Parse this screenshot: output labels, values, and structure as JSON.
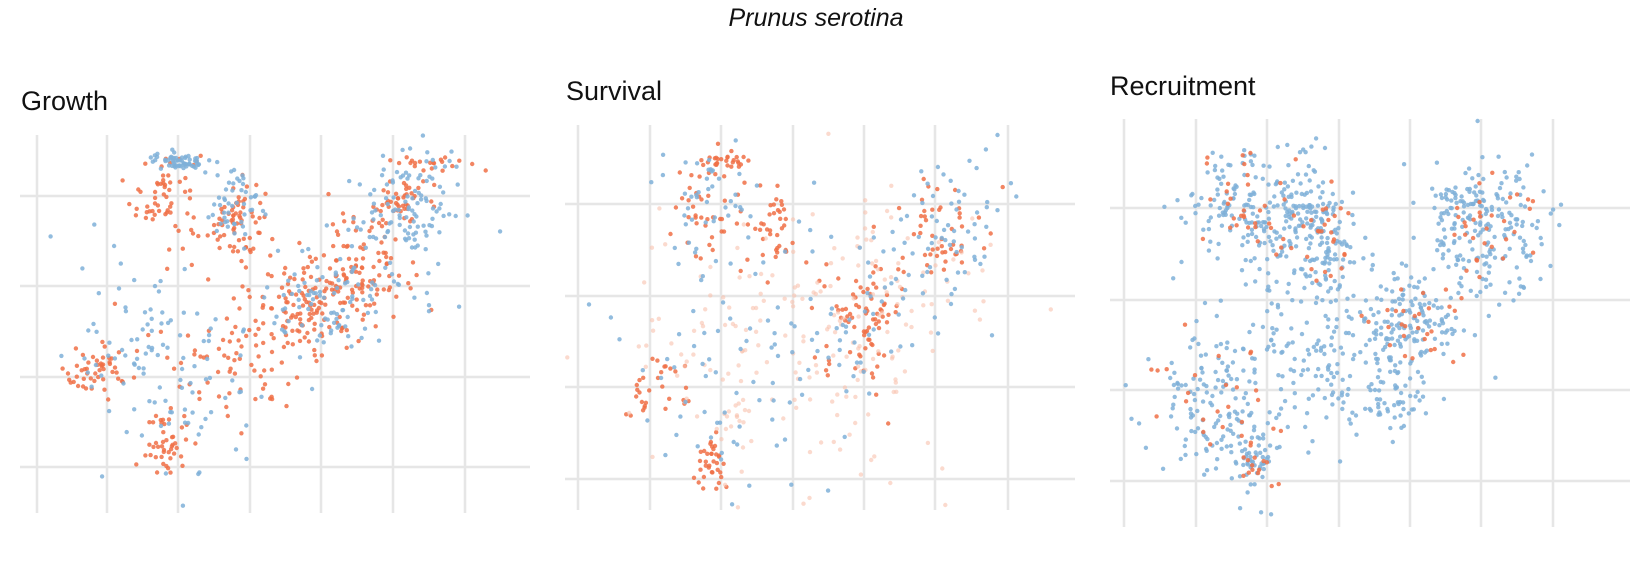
{
  "figure": {
    "title": "Prunus serotina"
  },
  "colors": {
    "orange": "#f07047",
    "orange_faint": "#f9c2ad",
    "blue": "#7fb0d8",
    "blue_faint": "#b9d5ea",
    "grid": "#e6e6e6"
  },
  "chart_data": [
    {
      "type": "scatter",
      "title": "Growth",
      "grid": true,
      "axis_labels_shown": false,
      "xlim": [
        0,
        7
      ],
      "ylim": [
        0,
        4
      ],
      "series": [
        {
          "color": "orange",
          "clusters": [
            [
              2.0,
              3.3,
              0.25,
              0.3,
              60
            ],
            [
              3.0,
              3.0,
              0.2,
              0.25,
              70
            ],
            [
              4.1,
              2.0,
              0.35,
              0.25,
              120
            ],
            [
              4.9,
              2.5,
              0.3,
              0.3,
              80
            ],
            [
              2.0,
              0.4,
              0.15,
              0.2,
              45
            ],
            [
              1.0,
              1.2,
              0.25,
              0.15,
              50
            ],
            [
              5.3,
              3.2,
              0.2,
              0.2,
              50
            ],
            [
              3.0,
              1.5,
              0.6,
              0.4,
              80
            ],
            [
              5.7,
              3.7,
              0.3,
              0.05,
              20
            ]
          ]
        },
        {
          "color": "blue",
          "clusters": [
            [
              2.2,
              3.7,
              0.2,
              0.05,
              60
            ],
            [
              3.0,
              3.2,
              0.25,
              0.25,
              50
            ],
            [
              4.3,
              2.0,
              0.4,
              0.3,
              80
            ],
            [
              5.3,
              2.8,
              0.4,
              0.4,
              80
            ],
            [
              1.6,
              1.5,
              0.4,
              0.5,
              60
            ],
            [
              2.5,
              1.0,
              0.6,
              0.6,
              50
            ],
            [
              5.6,
              3.4,
              0.35,
              0.3,
              50
            ]
          ]
        }
      ]
    },
    {
      "type": "scatter",
      "title": "Survival",
      "grid": true,
      "axis_labels_shown": false,
      "xlim": [
        0,
        7
      ],
      "ylim": [
        0,
        4
      ],
      "series": [
        {
          "color": "orange",
          "clusters": [
            [
              2.0,
              3.3,
              0.25,
              0.3,
              40
            ],
            [
              2.9,
              3.0,
              0.2,
              0.25,
              40
            ],
            [
              4.2,
              2.0,
              0.3,
              0.35,
              80
            ],
            [
              5.3,
              3.0,
              0.3,
              0.3,
              50
            ],
            [
              2.0,
              0.3,
              0.15,
              0.2,
              35
            ],
            [
              1.2,
              1.1,
              0.25,
              0.2,
              30
            ],
            [
              2.3,
              3.8,
              0.2,
              0.05,
              25
            ]
          ]
        },
        {
          "color": "orange_faint",
          "clusters": [
            [
              3.0,
              1.5,
              1.2,
              0.8,
              160
            ],
            [
              4.5,
              2.3,
              0.8,
              0.6,
              60
            ]
          ]
        },
        {
          "color": "blue",
          "clusters": [
            [
              2.0,
              3.3,
              0.4,
              0.4,
              50
            ],
            [
              4.2,
              2.0,
              0.5,
              0.4,
              50
            ],
            [
              5.5,
              3.1,
              0.4,
              0.4,
              60
            ],
            [
              2.5,
              1.2,
              0.9,
              0.7,
              70
            ]
          ]
        }
      ]
    },
    {
      "type": "scatter",
      "title": "Recruitment",
      "grid": true,
      "axis_labels_shown": false,
      "xlim": [
        0,
        7
      ],
      "ylim": [
        0,
        4
      ],
      "series": [
        {
          "color": "blue",
          "clusters": [
            [
              2.2,
              3.3,
              0.55,
              0.35,
              220
            ],
            [
              3.0,
              2.9,
              0.2,
              0.35,
              100
            ],
            [
              4.2,
              2.0,
              0.4,
              0.3,
              150
            ],
            [
              5.3,
              3.0,
              0.45,
              0.4,
              180
            ],
            [
              1.3,
              1.0,
              0.4,
              0.4,
              120
            ],
            [
              2.0,
              0.4,
              0.2,
              0.25,
              60
            ],
            [
              2.8,
              1.6,
              0.7,
              0.5,
              150
            ],
            [
              3.8,
              1.1,
              0.5,
              0.3,
              60
            ],
            [
              5.0,
              3.4,
              0.2,
              0.1,
              40
            ]
          ]
        },
        {
          "color": "orange",
          "clusters": [
            [
              2.0,
              3.3,
              0.4,
              0.3,
              35
            ],
            [
              3.0,
              2.9,
              0.2,
              0.3,
              25
            ],
            [
              4.3,
              2.0,
              0.4,
              0.3,
              30
            ],
            [
              5.5,
              3.1,
              0.35,
              0.35,
              30
            ],
            [
              1.5,
              1.1,
              0.4,
              0.4,
              25
            ],
            [
              2.0,
              0.3,
              0.2,
              0.2,
              15
            ]
          ]
        }
      ]
    }
  ]
}
